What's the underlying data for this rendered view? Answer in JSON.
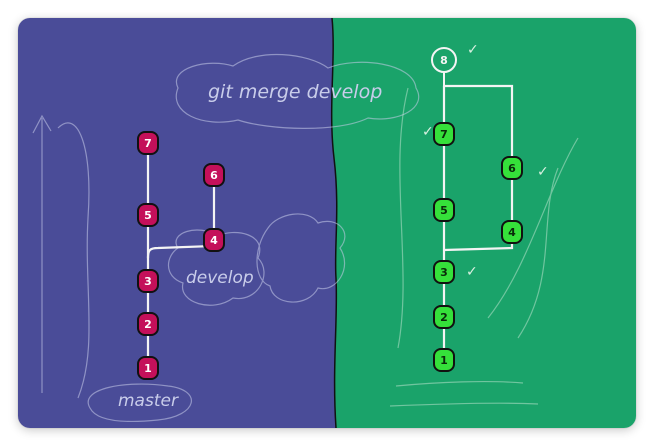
{
  "colors": {
    "left_bg": "#4a4c98",
    "right_bg": "#1aa36a",
    "left_node": "#c4105a",
    "right_node": "#35e03a",
    "line_white": "#f4f4f4",
    "sketch": "#c9cdea",
    "node_outline": "#111111",
    "check": "#d8f0e0"
  },
  "left": {
    "master_label": "master",
    "develop_label": "develop",
    "master_nodes": [
      "1",
      "2",
      "3",
      "5",
      "7"
    ],
    "develop_nodes": [
      "4",
      "6"
    ]
  },
  "right": {
    "merge_command": "git merge develop",
    "master_nodes": [
      "1",
      "2",
      "3",
      "5",
      "7"
    ],
    "develop_nodes": [
      "4",
      "6"
    ],
    "merge_node": "8",
    "check_mark": "✓"
  }
}
